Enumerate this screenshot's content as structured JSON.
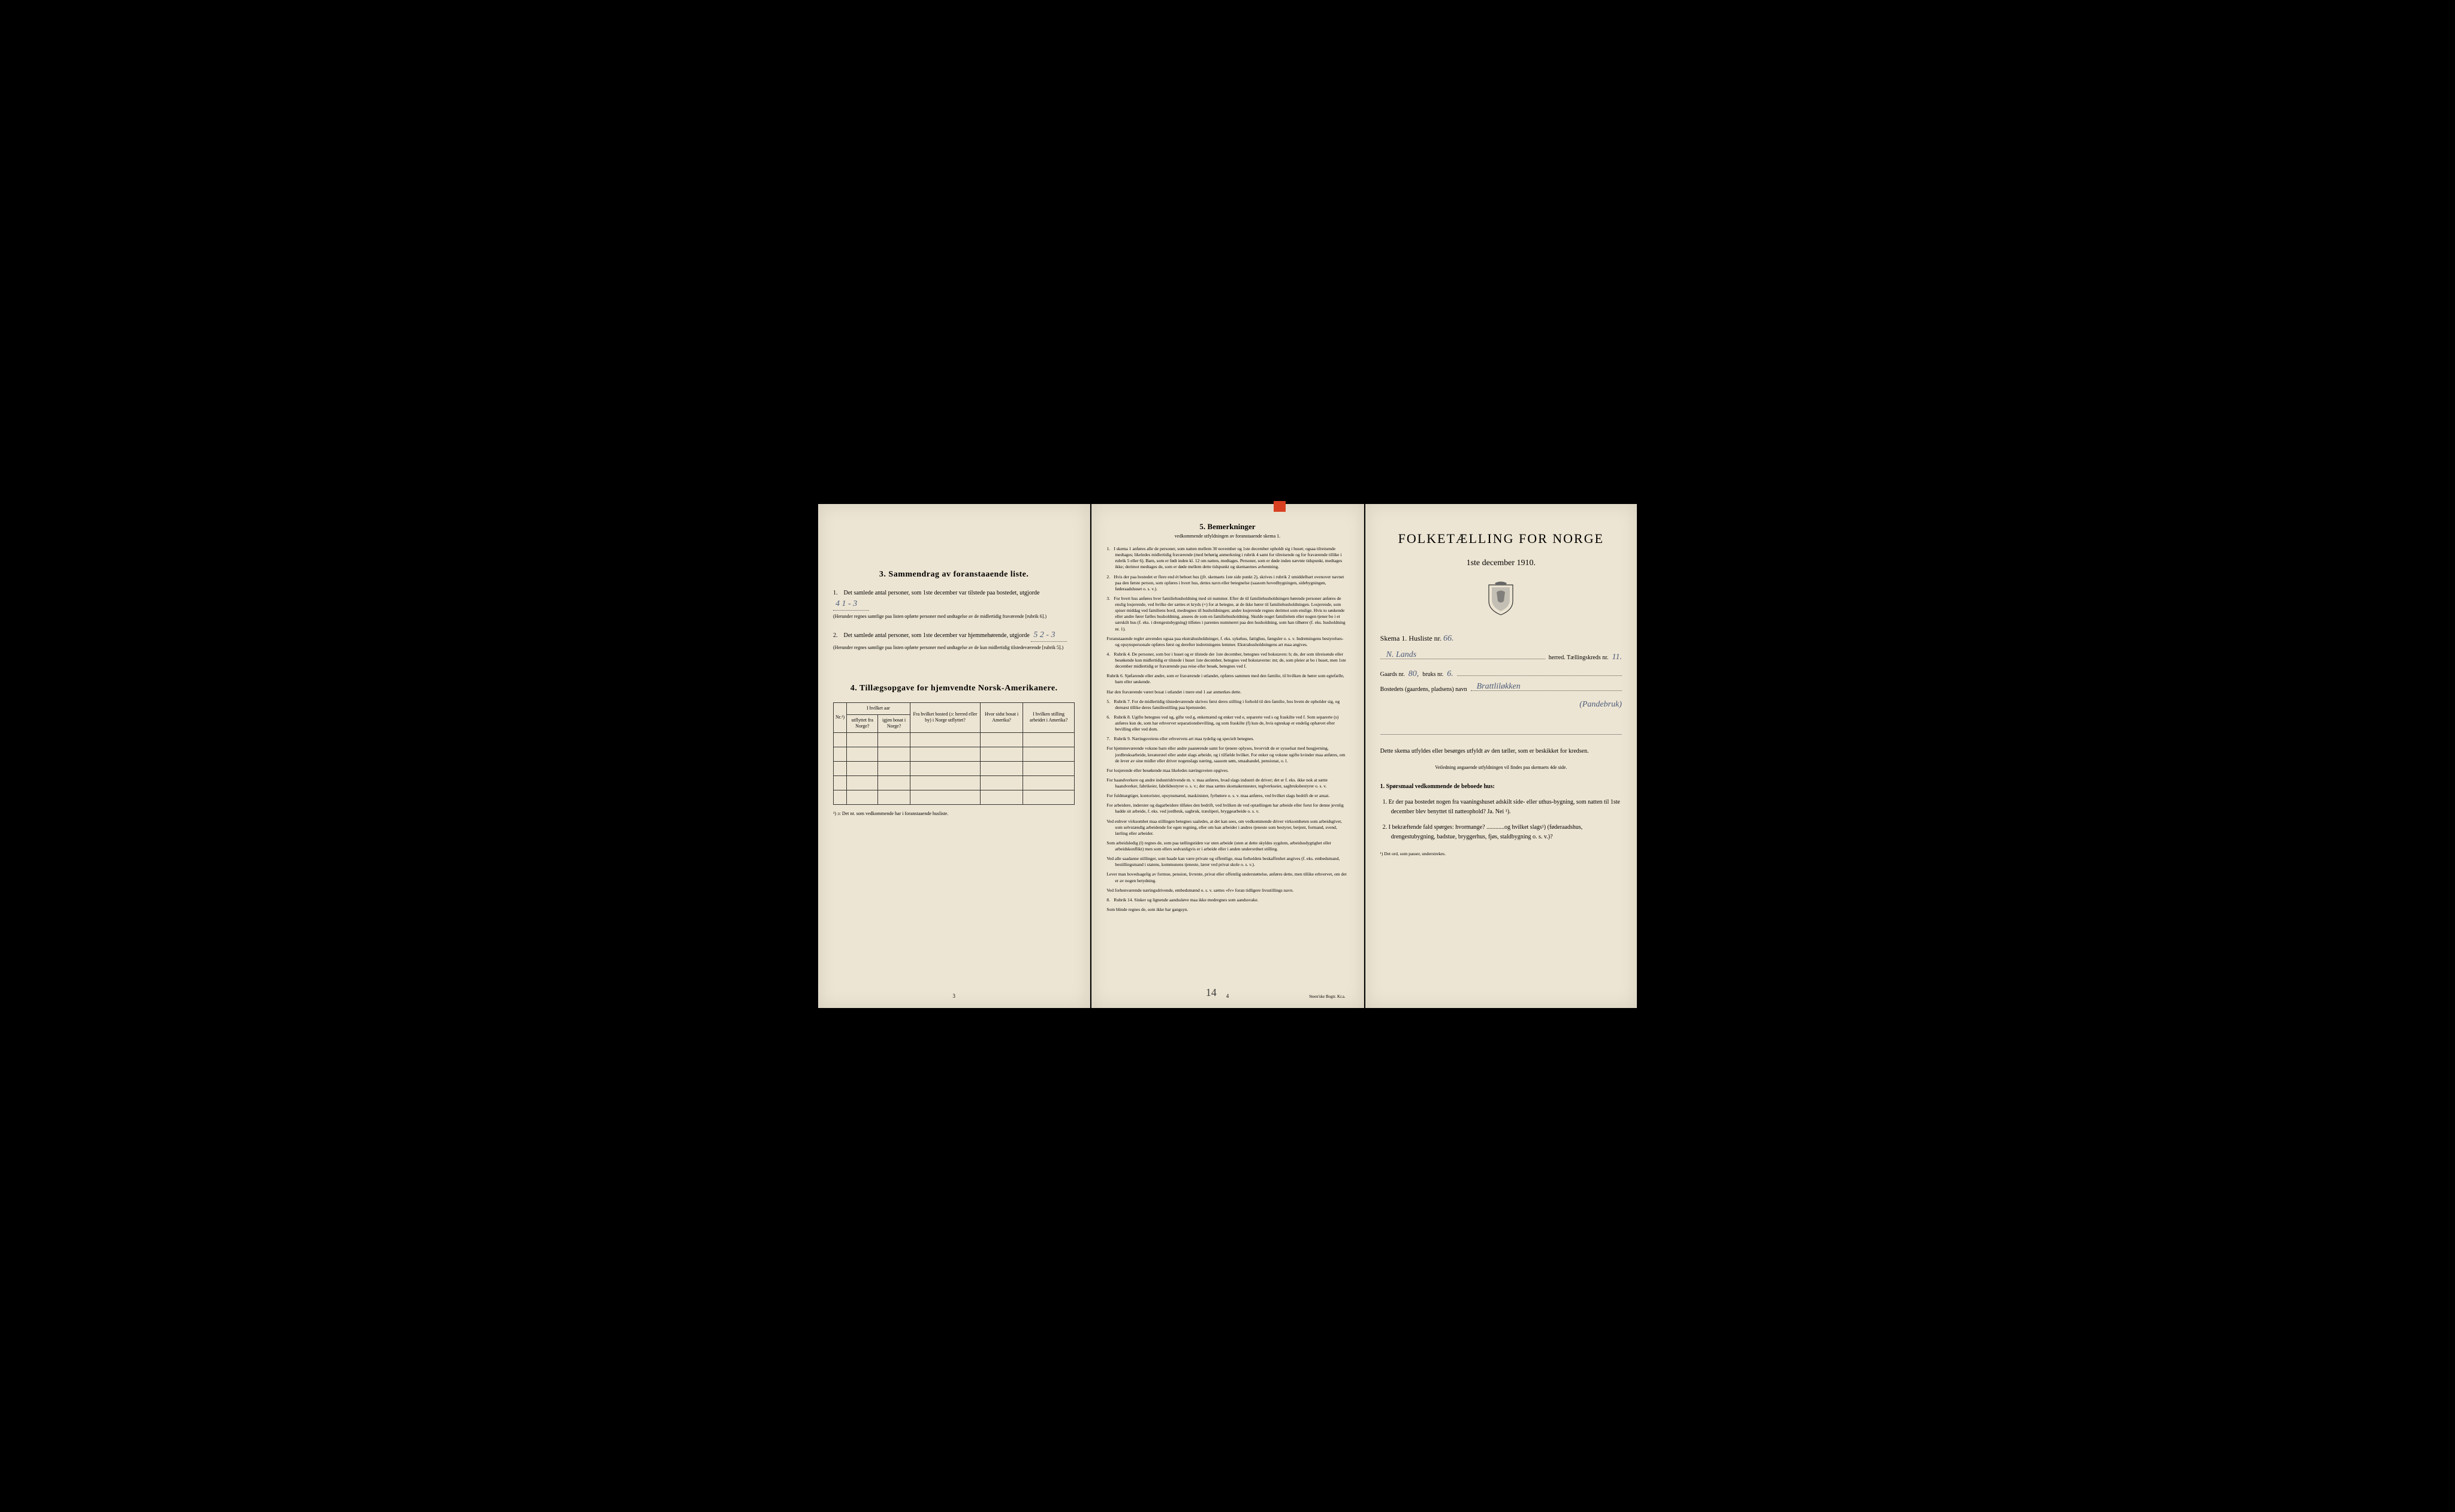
{
  "panel_left": {
    "section3_title": "3.  Sammendrag av foranstaaende liste.",
    "item1_text": "Det samlede antal personer, som 1ste december var tilstede paa bostedet, utgjorde",
    "item1_value": "4   1 - 3",
    "item1_note": "(Herunder regnes samtlige paa listen opførte personer med undtagelse av de midlertidig fraværende [rubrik 6].)",
    "item2_text": "Det samlede antal personer, som 1ste december var hjemmehørende, utgjorde",
    "item2_value": "5   2 - 3",
    "item2_note": "(Herunder regnes samtlige paa listen opførte personer med undtagelse av de kun midlertidig tilstedeværende [rubrik 5].)",
    "section4_title": "4.  Tillægsopgave for hjemvendte Norsk-Amerikanere.",
    "table_headers": {
      "col1": "Nr.¹)",
      "col2a": "I hvilket aar",
      "col2b_1": "utflyttet fra Norge?",
      "col2b_2": "igjen bosat i Norge?",
      "col3": "Fra hvilket bosted (ɔ: herred eller by) i Norge utflyttet?",
      "col4": "Hvor sidst bosat i Amerika?",
      "col5": "I hvilken stilling arbeidet i Amerika?"
    },
    "table_footnote": "¹) ɔ: Det nr. som vedkommende har i foranstaaende husliste.",
    "page_num": "3"
  },
  "panel_middle": {
    "title": "5.  Bemerkninger",
    "subtitle": "vedkommende utfyldningen av foranstaaende skema 1.",
    "items": [
      {
        "n": "1.",
        "text": "I skema 1 anføres alle de personer, som natten mellem 30 november og 1ste december opholdt sig i huset; ogsaa tilreisende medtages; likeledes midlertidig fraværende (med behørig anmerkning i rubrik 4 samt for tilreisende og for fraværende tillike i rubrik 5 eller 6). Barn, som er født inden kl. 12 om natten, medtages. Personer, som er døde inden nævnte tidspunkt, medtages ikke; derimot medtages de, som er døde mellem dette tidspunkt og skemaernes avhentning."
      },
      {
        "n": "2.",
        "text": "Hvis der paa bostedet er flere end ét beboet hus (jfr. skemaets 1ste side punkt 2), skrives i rubrik 2 umiddelbart ovenover navnet paa den første person, som opføres i hvert hus, dettes navn eller betegnelse (saasom hovedbygningen, sidebygningen, føderaadshuset o. s. v.)."
      },
      {
        "n": "3.",
        "text": "For hvert hus anføres hver familiehusholdning med sit nummer. Efter de til familiehusholdningen hørende personer anføres de enslig losjerende, ved hvilke der sættes et kryds (×) for at betegne, at de ikke hører til familiehusholdningen. Losjerende, som spiser middag ved familiens bord, medregnes til husholdningen; andre losjerende regnes derimot som enslige. Hvis to søskende eller andre fører fælles husholdning, ansees de som en familiehusholdning. Skulde noget familielem eller nogen tjener bo i et særskilt hus (f. eks. i drengestubygning) tilføies i parentes nummeret paa den husholdning, som han tilhører (f. eks. husholdning nr. 1).",
        "extra": "Foranstaaende regler anvendes ogsaa paa ekstrahusholdninger, f. eks. sykehus, fattighus, fængsler o. s. v. Indretningens bestyrelses- og opsynspersonale opføres først og derefter indretningens lemmer. Ekstrahusholdningens art maa angives."
      },
      {
        "n": "4.",
        "text": "Rubrik 4. De personer, som bor i huset og er tilstede der 1ste december, betegnes ved bokstaven: b; de, der som tilreisende eller besøkende kun midlertidig er tilstede i huset 1ste december, betegnes ved bokstaverne: mt; de, som pleier at bo i huset, men 1ste december midlertidig er fraværende paa reise eller besøk, betegnes ved f.",
        "extra": "Rubrik 6. Sjøfarende eller andre, som er fraværende i utlandet, opføres sammen med den familie, til hvilken de hører som egtefælle, barn eller søskende.",
        "extra2": "Har den fraværende været bosat i utlandet i mere end 1 aar anmerkes dette."
      },
      {
        "n": "5.",
        "text": "Rubrik 7. For de midlertidig tilstedeværende skrives først deres stilling i forhold til den familie, hos hvem de opholder sig, og dernæst tillike deres familiestilling paa hjemstedet."
      },
      {
        "n": "6.",
        "text": "Rubrik 8. Ugifte betegnes ved ug, gifte ved g, enkemænd og enker ved e, separerte ved s og fraskilte ved f. Som separerte (s) anføres kun de, som har erhvervet separationsbevilling, og som fraskilte (f) kun de, hvis egteskap er endelig ophævet efter bevilling eller ved dom."
      },
      {
        "n": "7.",
        "text": "Rubrik 9. Næringsveiens eller erhvervets art maa tydelig og specielt betegnes.",
        "paras": [
          "For hjemmeværende voksne barn eller andre paarørende samt for tjenere oplyses, hvorvidt de er sysselsat med husgjerning, jordbruksarbeide, kreaturstel eller andet slags arbeide, og i tilfælde hvilket. For enker og voksne ugifte kvinder maa anføres, om de lever av sine midler eller driver nogenslags næring, saasom søm, smaahandel, pensionat, o. l.",
          "For losjerende eller besøkende maa likeledes næringsveien opgives.",
          "For haandverkere og andre industridrivende m. v. maa anføres, hvad slags industri de driver; det er f. eks. ikke nok at sætte haandverker, fabrikeier, fabrikbestyrer o. s. v.; der maa sættes skomakerınester, teglverkseier, sagbruksbestyrer o. s. v.",
          "For fuldmægtiger, kontorister, opsynsmænd, maskinister, fyrbøtere o. s. v. maa anføres, ved hvilket slags bedrift de er ansat.",
          "For arbeidere, inderster og dagarbeidere tilføies den bedrift, ved hvilken de ved optællingen har arbeide eller forut for denne jevnlig hadde sit arbeide, f. eks. ved jordbruk, sagbruk, træsliperi, bryggearbeide o. s. v.",
          "Ved enhver virksomhet maa stillingen betegnes saaledes, at det kan sees, om vedkommende driver virksomheten som arbeidsgiver, som selvstændig arbeidende for egen regning, eller om han arbeider i andres tjeneste som bestyrer, betjent, formand, svend, lærling eller arbeider.",
          "Som arbeidsledig (l) regnes de, som paa tællingstiden var uten arbeide (uten at dette skyldes sygdom, arbeidsudygtighet eller arbeidskonflikt) men som ellers sedvanligvis er i arbeide eller i anden underordnet stilling.",
          "Ved alle saadanne stillinger, som baade kan være private og offentlige, maa forholdets beskaffenhet angives (f. eks. embedsmand, bestillingsmand i statens, kommunens tjeneste, lærer ved privat skole o. s. v.).",
          "Lever man hovedsagelig av formue, pension, livrente, privat eller offentlig understøttelse, anføres dette, men tillike erhvervet, om det er av nogen betydning.",
          "Ved forhenværende næringsdrivende, embedsmænd o. s. v. sættes «fv» foran tidligere livsstillings navn."
        ]
      },
      {
        "n": "8.",
        "text": "Rubrik 14. Sinker og lignende aandssløve maa ikke medregnes som aandssvake.",
        "extra": "Som blinde regnes de, som ikke har gangsyn."
      }
    ],
    "page_num": "4",
    "handwritten_num": "14",
    "printer": "Steen'ske Bogtr.  Kr.a."
  },
  "panel_right": {
    "main_title": "FOLKETÆLLING FOR NORGE",
    "date": "1ste december 1910.",
    "schema_label": "Skema 1.  Husliste nr.",
    "husliste_nr": "66.",
    "herred_value": "N. Lands",
    "herred_label": "herred.  Tællingskreds nr.",
    "kreds_nr": "11.",
    "gaards_label": "Gaards nr.",
    "gaards_nr": "80,",
    "bruks_label": "bruks nr.",
    "bruks_nr": "6.",
    "bosted_label": "Bostedets (gaardens, pladsens) navn",
    "bosted_value": "Brattliløkken",
    "bosted_value2": "(Pandebruk)",
    "body_text": "Dette skema utfyldes eller besørges utfyldt av den tæller, som er beskikket for kredsen.",
    "guidance_note": "Veiledning angaaende utfyldningen vil findes paa skemaets 4de side.",
    "q_header": "1. Spørsmaal vedkommende de beboede hus:",
    "q1": "Er der paa bostedet nogen fra vaaningshuset adskilt side- eller uthus-bygning, som natten til 1ste december blev benyttet til natteophold?  Ja.  Nei ¹).",
    "q2": "I bekræftende fald spørges: hvormange? ............og hvilket slags¹) (føderaadshus, drengestubygning, badstue, bryggerhus, fjøs, staldbygning o. s. v.)?",
    "footnote": "¹) Det ord, som passer, understrekes."
  }
}
